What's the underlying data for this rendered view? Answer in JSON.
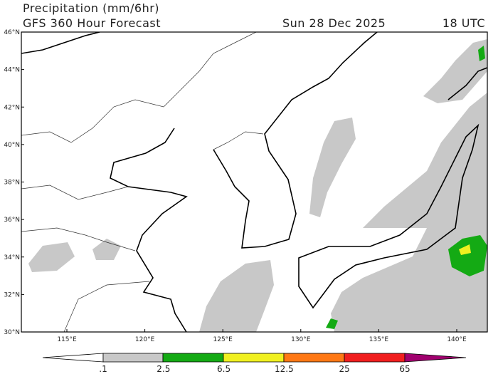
{
  "header": {
    "title": "Precipitation (mm/6hr)",
    "subtitle": "GFS 360 Hour Forecast",
    "date": "Sun 28 Dec 2025",
    "time": "18 UTC"
  },
  "map": {
    "lat_labels": [
      "46°N",
      "44°N",
      "42°N",
      "40°N",
      "38°N",
      "36°N",
      "34°N",
      "32°N",
      "30°N"
    ],
    "lon_labels": [
      "115°E",
      "120°E",
      "125°E",
      "130°E",
      "135°E",
      "140°E"
    ]
  },
  "colorbar": {
    "labels": [
      ".1",
      "2.5",
      "6.5",
      "12.5",
      "25",
      "65"
    ]
  }
}
